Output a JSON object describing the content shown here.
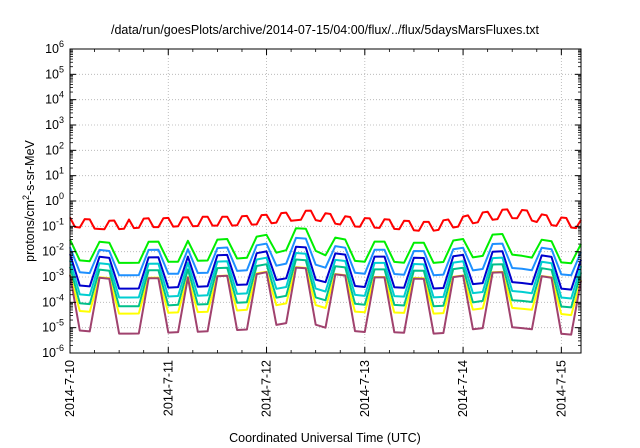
{
  "chart_data": {
    "type": "line",
    "title": "/data/run/goesPlots/archive/2014-07-15/04:00/flux/../flux/5daysMarsFluxes.txt",
    "xlabel": "Coordinated Universal Time (UTC)",
    "ylabel_base": "protons/cm",
    "ylabel_sup": "2",
    "ylabel_rest": "-s-sr-MeV",
    "y_scale": "log",
    "ylim_exp": [
      -6,
      6
    ],
    "y_tick_exponents": [
      -6,
      -5,
      -4,
      -3,
      -2,
      -1,
      0,
      1,
      2,
      3,
      4,
      5,
      6
    ],
    "xlim_days": [
      0,
      5.2
    ],
    "x_ticks": [
      {
        "label": "2014-7-10",
        "day": 0
      },
      {
        "label": "2014-7-11",
        "day": 1
      },
      {
        "label": "2014-7-12",
        "day": 2
      },
      {
        "label": "2014-7-13",
        "day": 3
      },
      {
        "label": "2014-7-14",
        "day": 4
      },
      {
        "label": "2014-7-15",
        "day": 5
      }
    ],
    "grid": true,
    "series": [
      {
        "color": "#ff0000",
        "base": [
          0.15,
          0.13,
          0.12,
          0.11,
          0.12,
          0.13,
          0.14,
          0.14,
          0.15,
          0.15,
          0.16,
          0.16,
          0.16,
          0.17,
          0.18,
          0.2,
          0.23,
          0.27,
          0.28,
          0.22,
          0.18,
          0.15,
          0.14,
          0.13,
          0.12,
          0.11,
          0.1,
          0.1,
          0.12,
          0.15,
          0.2,
          0.25,
          0.3,
          0.32,
          0.28,
          0.2,
          0.16,
          0.14,
          0.12
        ],
        "amp": 1.5,
        "period": 0.1
      },
      {
        "color": "#00ee00",
        "base": [
          0.012,
          0.011,
          0.01,
          0.009,
          0.009,
          0.009,
          0.01,
          0.01,
          0.01,
          0.011,
          0.011,
          0.012,
          0.013,
          0.014,
          0.016,
          0.02,
          0.028,
          0.035,
          0.03,
          0.018,
          0.013,
          0.011,
          0.01,
          0.01,
          0.01,
          0.009,
          0.009,
          0.009,
          0.01,
          0.012,
          0.015,
          0.018,
          0.02,
          0.019,
          0.016,
          0.012,
          0.01,
          0.009,
          0.008
        ],
        "amp": 2.5,
        "period": 0.2
      },
      {
        "color": "#1e90ff",
        "base": [
          0.005,
          0.0045,
          0.004,
          0.0035,
          0.0035,
          0.0035,
          0.004,
          0.004,
          0.004,
          0.0042,
          0.0044,
          0.0046,
          0.005,
          0.0055,
          0.006,
          0.0075,
          0.01,
          0.012,
          0.01,
          0.007,
          0.005,
          0.0045,
          0.004,
          0.004,
          0.004,
          0.0036,
          0.0035,
          0.0035,
          0.0038,
          0.0045,
          0.0055,
          0.0065,
          0.007,
          0.0068,
          0.006,
          0.0048,
          0.004,
          0.0036,
          0.0032
        ],
        "amp": 3,
        "period": 0.2
      },
      {
        "color": "#0000cd",
        "base": [
          0.002,
          0.0018,
          0.0016,
          0.0014,
          0.0014,
          0.0014,
          0.0015,
          0.0015,
          0.0016,
          0.0016,
          0.0017,
          0.0018,
          0.0019,
          0.002,
          0.0022,
          0.0028,
          0.0035,
          0.004,
          0.0034,
          0.0025,
          0.002,
          0.0018,
          0.0016,
          0.0016,
          0.0016,
          0.0015,
          0.0014,
          0.0014,
          0.0015,
          0.0018,
          0.0021,
          0.0024,
          0.0026,
          0.0025,
          0.0022,
          0.0018,
          0.0015,
          0.0013,
          0.0012
        ],
        "amp": 4,
        "period": 0.2
      },
      {
        "color": "#00ced1",
        "base": [
          0.001,
          0.0009,
          0.0008,
          0.0007,
          0.0007,
          0.0007,
          0.00075,
          0.00075,
          0.0008,
          0.0008,
          0.00085,
          0.0009,
          0.00095,
          0.001,
          0.0011,
          0.0014,
          0.0018,
          0.002,
          0.0017,
          0.0012,
          0.001,
          0.0009,
          0.0008,
          0.0008,
          0.0008,
          0.00075,
          0.0007,
          0.0007,
          0.00075,
          0.0009,
          0.00105,
          0.0012,
          0.0013,
          0.00125,
          0.0011,
          0.0009,
          0.00075,
          0.00065,
          0.0006
        ],
        "amp": 4.5,
        "period": 0.2
      },
      {
        "color": "#00c08a",
        "base": [
          0.0005,
          0.00045,
          0.0004,
          0.00035,
          0.00035,
          0.00035,
          0.00037,
          0.00037,
          0.0004,
          0.0004,
          0.00042,
          0.00045,
          0.00047,
          0.0005,
          0.00055,
          0.0007,
          0.0009,
          0.001,
          0.00085,
          0.0006,
          0.0005,
          0.00045,
          0.0004,
          0.0004,
          0.0004,
          0.00037,
          0.00035,
          0.00035,
          0.00037,
          0.00045,
          0.0005,
          0.0006,
          0.00065,
          0.0006,
          0.00055,
          0.00045,
          0.00037,
          0.00032,
          0.0003
        ],
        "amp": 5,
        "period": 0.2
      },
      {
        "color": "#ffff00",
        "base": [
          0.00025,
          0.00022,
          0.0002,
          0.00018,
          0.00018,
          0.00018,
          0.00019,
          0.00019,
          0.0002,
          0.0002,
          0.00021,
          0.00022,
          0.00023,
          0.00025,
          0.00028,
          0.00035,
          0.00045,
          0.0005,
          0.00042,
          0.0003,
          0.00025,
          0.00022,
          0.0002,
          0.0002,
          0.0002,
          0.00019,
          0.00018,
          0.00018,
          0.00019,
          0.00022,
          0.00026,
          0.0003,
          0.00032,
          0.0003,
          0.00027,
          0.00022,
          0.00019,
          0.00016,
          0.00015
        ],
        "amp": 5,
        "period": 0.2
      },
      {
        "color": "#a0426e",
        "base": [
          0.0001,
          9e-05,
          8e-05,
          7e-05,
          7e-05,
          7e-05,
          7.5e-05,
          7.5e-05,
          8e-05,
          8e-05,
          8.5e-05,
          9e-05,
          9.5e-05,
          0.0001,
          0.00011,
          0.00014,
          0.00018,
          0.0002,
          0.00017,
          0.00012,
          0.0001,
          9e-05,
          8e-05,
          8e-05,
          8e-05,
          7.5e-05,
          7e-05,
          7e-05,
          7.5e-05,
          9e-05,
          0.000105,
          0.00012,
          0.00013,
          0.000125,
          0.00011,
          9e-05,
          7.5e-05,
          6.5e-05,
          6e-05
        ],
        "amp": 12,
        "period": 0.2
      }
    ]
  }
}
